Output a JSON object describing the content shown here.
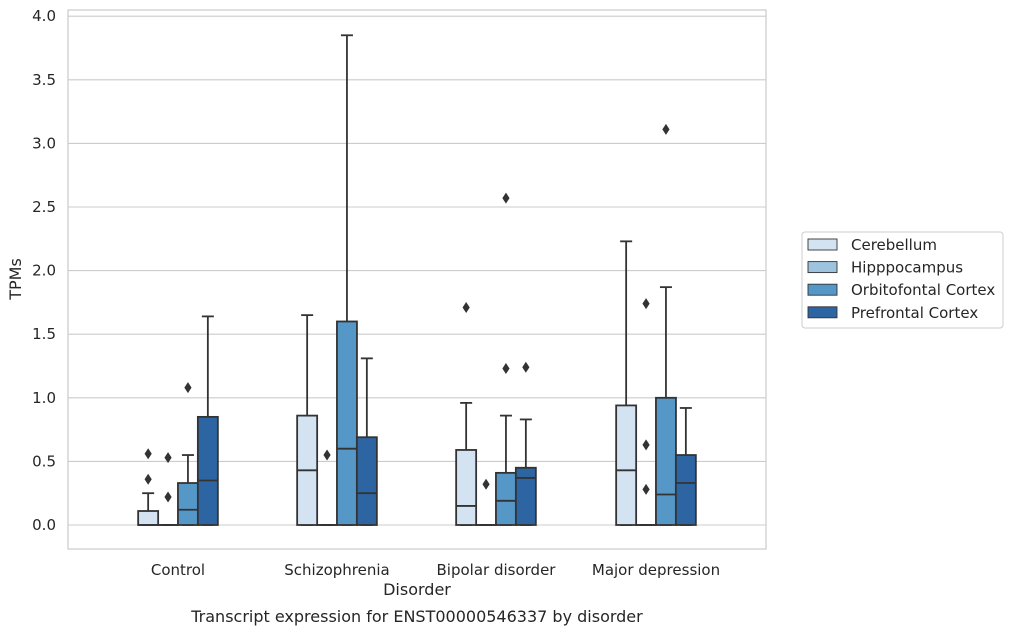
{
  "caption": "Transcript expression for ENST00000546337 by disorder",
  "chart_data": {
    "type": "boxplot",
    "xlabel": "Disorder",
    "ylabel": "TPMs",
    "ylim": [
      -0.18,
      4.05
    ],
    "yticks": [
      "0.0",
      "0.5",
      "1.0",
      "1.5",
      "2.0",
      "2.5",
      "3.0",
      "3.5",
      "4.0"
    ],
    "grid": "horizontal",
    "legend_position": "outside-right",
    "categories": [
      "Control",
      "Schizophrenia",
      "Bipolar disorder",
      "Major depression"
    ],
    "series": [
      {
        "name": "Cerebellum",
        "color": "#d4e3f2",
        "boxes": [
          {
            "q1": 0.0,
            "median": 0.0,
            "q3": 0.11,
            "whislo": 0.0,
            "whishi": 0.25,
            "fliers": [
              0.36,
              0.56
            ]
          },
          {
            "q1": 0.0,
            "median": 0.43,
            "q3": 0.86,
            "whislo": 0.0,
            "whishi": 1.65,
            "fliers": []
          },
          {
            "q1": 0.0,
            "median": 0.15,
            "q3": 0.59,
            "whislo": 0.0,
            "whishi": 0.96,
            "fliers": [
              1.71
            ]
          },
          {
            "q1": 0.0,
            "median": 0.43,
            "q3": 0.94,
            "whislo": 0.0,
            "whishi": 2.23,
            "fliers": []
          }
        ]
      },
      {
        "name": "Hipppocampus",
        "color": "#9dc3de",
        "boxes": [
          {
            "q1": 0.0,
            "median": 0.0,
            "q3": 0.0,
            "whislo": 0.0,
            "whishi": 0.0,
            "fliers": [
              0.22,
              0.53
            ]
          },
          {
            "q1": 0.0,
            "median": 0.0,
            "q3": 0.0,
            "whislo": 0.0,
            "whishi": 0.0,
            "fliers": [
              0.55
            ]
          },
          {
            "q1": 0.0,
            "median": 0.0,
            "q3": 0.0,
            "whislo": 0.0,
            "whishi": 0.0,
            "fliers": [
              0.32
            ]
          },
          {
            "q1": 0.0,
            "median": 0.0,
            "q3": 0.0,
            "whislo": 0.0,
            "whishi": 0.0,
            "fliers": [
              0.28,
              0.63,
              1.74
            ]
          }
        ]
      },
      {
        "name": "Orbitofontal Cortex",
        "color": "#5597c7",
        "boxes": [
          {
            "q1": 0.0,
            "median": 0.12,
            "q3": 0.33,
            "whislo": 0.0,
            "whishi": 0.55,
            "fliers": [
              1.08
            ]
          },
          {
            "q1": 0.0,
            "median": 0.6,
            "q3": 1.6,
            "whislo": 0.0,
            "whishi": 3.85,
            "fliers": []
          },
          {
            "q1": 0.0,
            "median": 0.19,
            "q3": 0.41,
            "whislo": 0.0,
            "whishi": 0.86,
            "fliers": [
              1.23,
              2.57
            ]
          },
          {
            "q1": 0.0,
            "median": 0.24,
            "q3": 1.0,
            "whislo": 0.0,
            "whishi": 1.87,
            "fliers": [
              3.11
            ]
          }
        ]
      },
      {
        "name": "Prefrontal Cortex",
        "color": "#2d65a2",
        "boxes": [
          {
            "q1": 0.0,
            "median": 0.35,
            "q3": 0.85,
            "whislo": 0.0,
            "whishi": 1.64,
            "fliers": []
          },
          {
            "q1": 0.0,
            "median": 0.25,
            "q3": 0.69,
            "whislo": 0.0,
            "whishi": 1.31,
            "fliers": []
          },
          {
            "q1": 0.0,
            "median": 0.37,
            "q3": 0.45,
            "whislo": 0.0,
            "whishi": 0.83,
            "fliers": [
              1.24
            ]
          },
          {
            "q1": 0.0,
            "median": 0.33,
            "q3": 0.55,
            "whislo": 0.0,
            "whishi": 0.92,
            "fliers": []
          }
        ]
      }
    ]
  }
}
